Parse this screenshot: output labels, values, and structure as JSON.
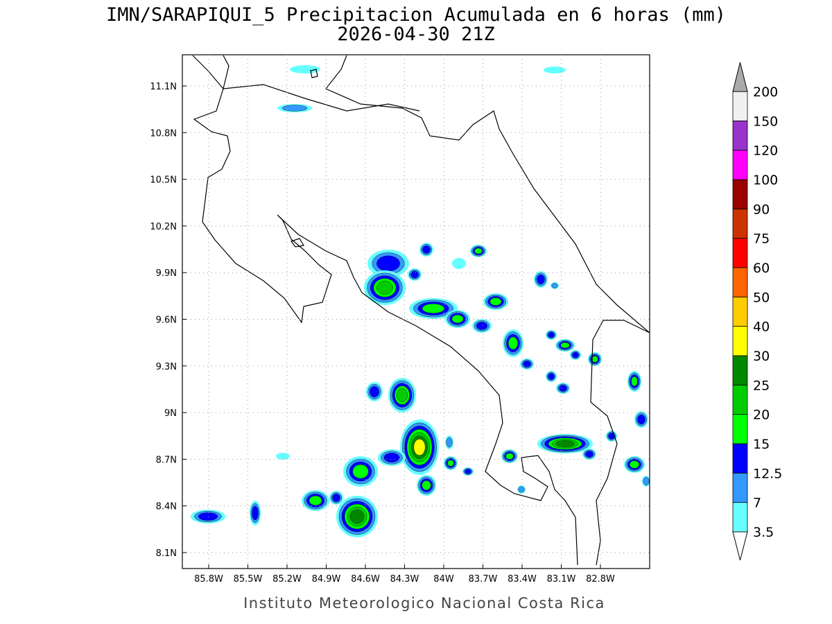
{
  "map": {
    "title": "IMN/SARAPIQUI_5 Precipitacion Acumulada en 6 horas (mm)",
    "subtitle": "2026-04-30 21Z",
    "footer": "Instituto Meteorologico Nacional Costa Rica",
    "lon_labels": [
      "85.8W",
      "85.5W",
      "85.2W",
      "84.9W",
      "84.6W",
      "84.3W",
      "84W",
      "83.7W",
      "83.4W",
      "83.1W",
      "82.8W"
    ],
    "lat_labels": [
      "11.1N",
      "10.8N",
      "10.5N",
      "10.2N",
      "9.9N",
      "9.6N",
      "9.3N",
      "9N",
      "8.7N",
      "8.4N",
      "8.1N"
    ],
    "colorbar": {
      "levels": [
        3.5,
        7,
        12.5,
        15,
        20,
        25,
        30,
        40,
        50,
        60,
        75,
        90,
        100,
        120,
        150,
        200
      ],
      "colors": [
        "#66ffff",
        "#3399ff",
        "#0000ff",
        "#00ff00",
        "#00cc00",
        "#008800",
        "#ffff00",
        "#ffcc00",
        "#ff6600",
        "#ff0000",
        "#cc3300",
        "#990000",
        "#ff00ff",
        "#9933cc",
        "#f0f0f0"
      ],
      "below_color": "#ffffff",
      "above_color": "#aaaaaa"
    }
  }
}
